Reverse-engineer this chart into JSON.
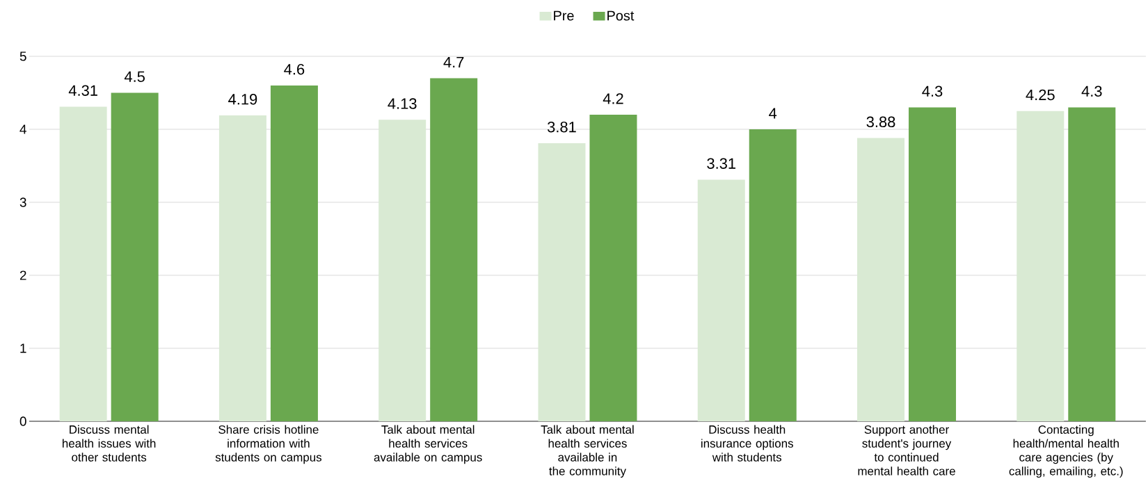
{
  "chart_data": {
    "type": "bar",
    "categories": [
      "Discuss mental health issues with other students",
      "Share crisis hotline information with students on campus",
      "Talk about mental health services available on campus",
      "Talk about mental health services available in the community",
      "Discuss health insurance options with students",
      "Support another student's journey to continued mental health care",
      "Contacting health/mental health care agencies (by calling, emailing, etc.)"
    ],
    "series": [
      {
        "name": "Pre",
        "color": "#d9ead3",
        "values": [
          4.31,
          4.19,
          4.13,
          3.81,
          3.31,
          3.88,
          4.25
        ]
      },
      {
        "name": "Post",
        "color": "#6aa84f",
        "values": [
          4.5,
          4.6,
          4.7,
          4.2,
          4,
          4.3,
          4.3
        ]
      }
    ],
    "ylim": [
      0,
      5
    ],
    "yticks": [
      0,
      1,
      2,
      3,
      4,
      5
    ],
    "grid": "y",
    "legend": "top",
    "data_labels": true
  }
}
